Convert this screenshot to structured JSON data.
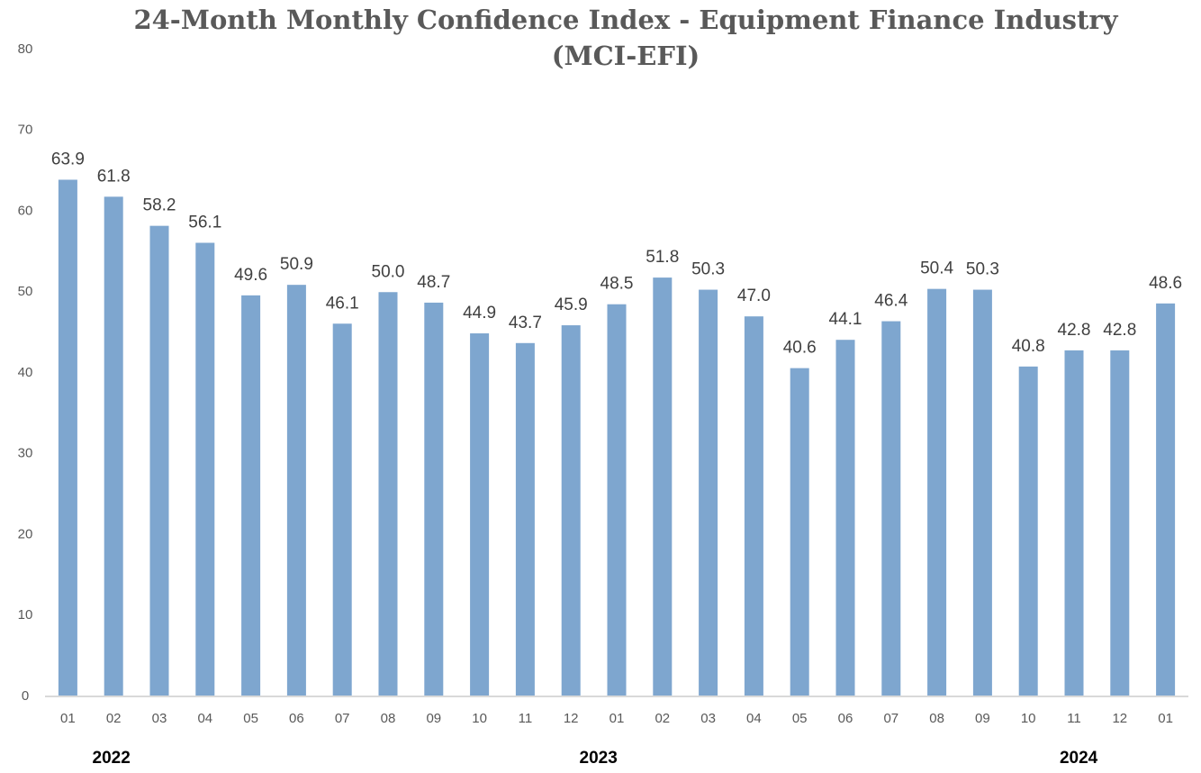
{
  "chart_data": {
    "type": "bar",
    "title_lines": [
      "24-Month Monthly Confidence Index - Equipment Finance Industry",
      "(MCI-EFI)"
    ],
    "categories": [
      "01",
      "02",
      "03",
      "04",
      "05",
      "06",
      "07",
      "08",
      "09",
      "10",
      "11",
      "12",
      "01",
      "02",
      "03",
      "04",
      "05",
      "06",
      "07",
      "08",
      "09",
      "10",
      "11",
      "12",
      "01"
    ],
    "values": [
      63.9,
      61.8,
      58.2,
      56.1,
      49.6,
      50.9,
      46.1,
      50.0,
      48.7,
      44.9,
      43.7,
      45.9,
      48.5,
      51.8,
      50.3,
      47.0,
      40.6,
      44.1,
      46.4,
      50.4,
      50.3,
      40.8,
      42.8,
      42.8,
      48.6
    ],
    "value_labels": [
      "63.9",
      "61.8",
      "58.2",
      "56.1",
      "49.6",
      "50.9",
      "46.1",
      "50.0",
      "48.7",
      "44.9",
      "43.7",
      "45.9",
      "48.5",
      "51.8",
      "50.3",
      "47.0",
      "40.6",
      "44.1",
      "46.4",
      "50.4",
      "50.3",
      "40.8",
      "42.8",
      "42.8",
      "48.6"
    ],
    "year_labels": [
      "2022",
      "2023",
      "2024"
    ],
    "color": "#7ea6cf",
    "ylim": [
      0,
      80
    ],
    "yticks": [
      0,
      10,
      20,
      30,
      40,
      50,
      60,
      70,
      80
    ],
    "grid": false
  }
}
